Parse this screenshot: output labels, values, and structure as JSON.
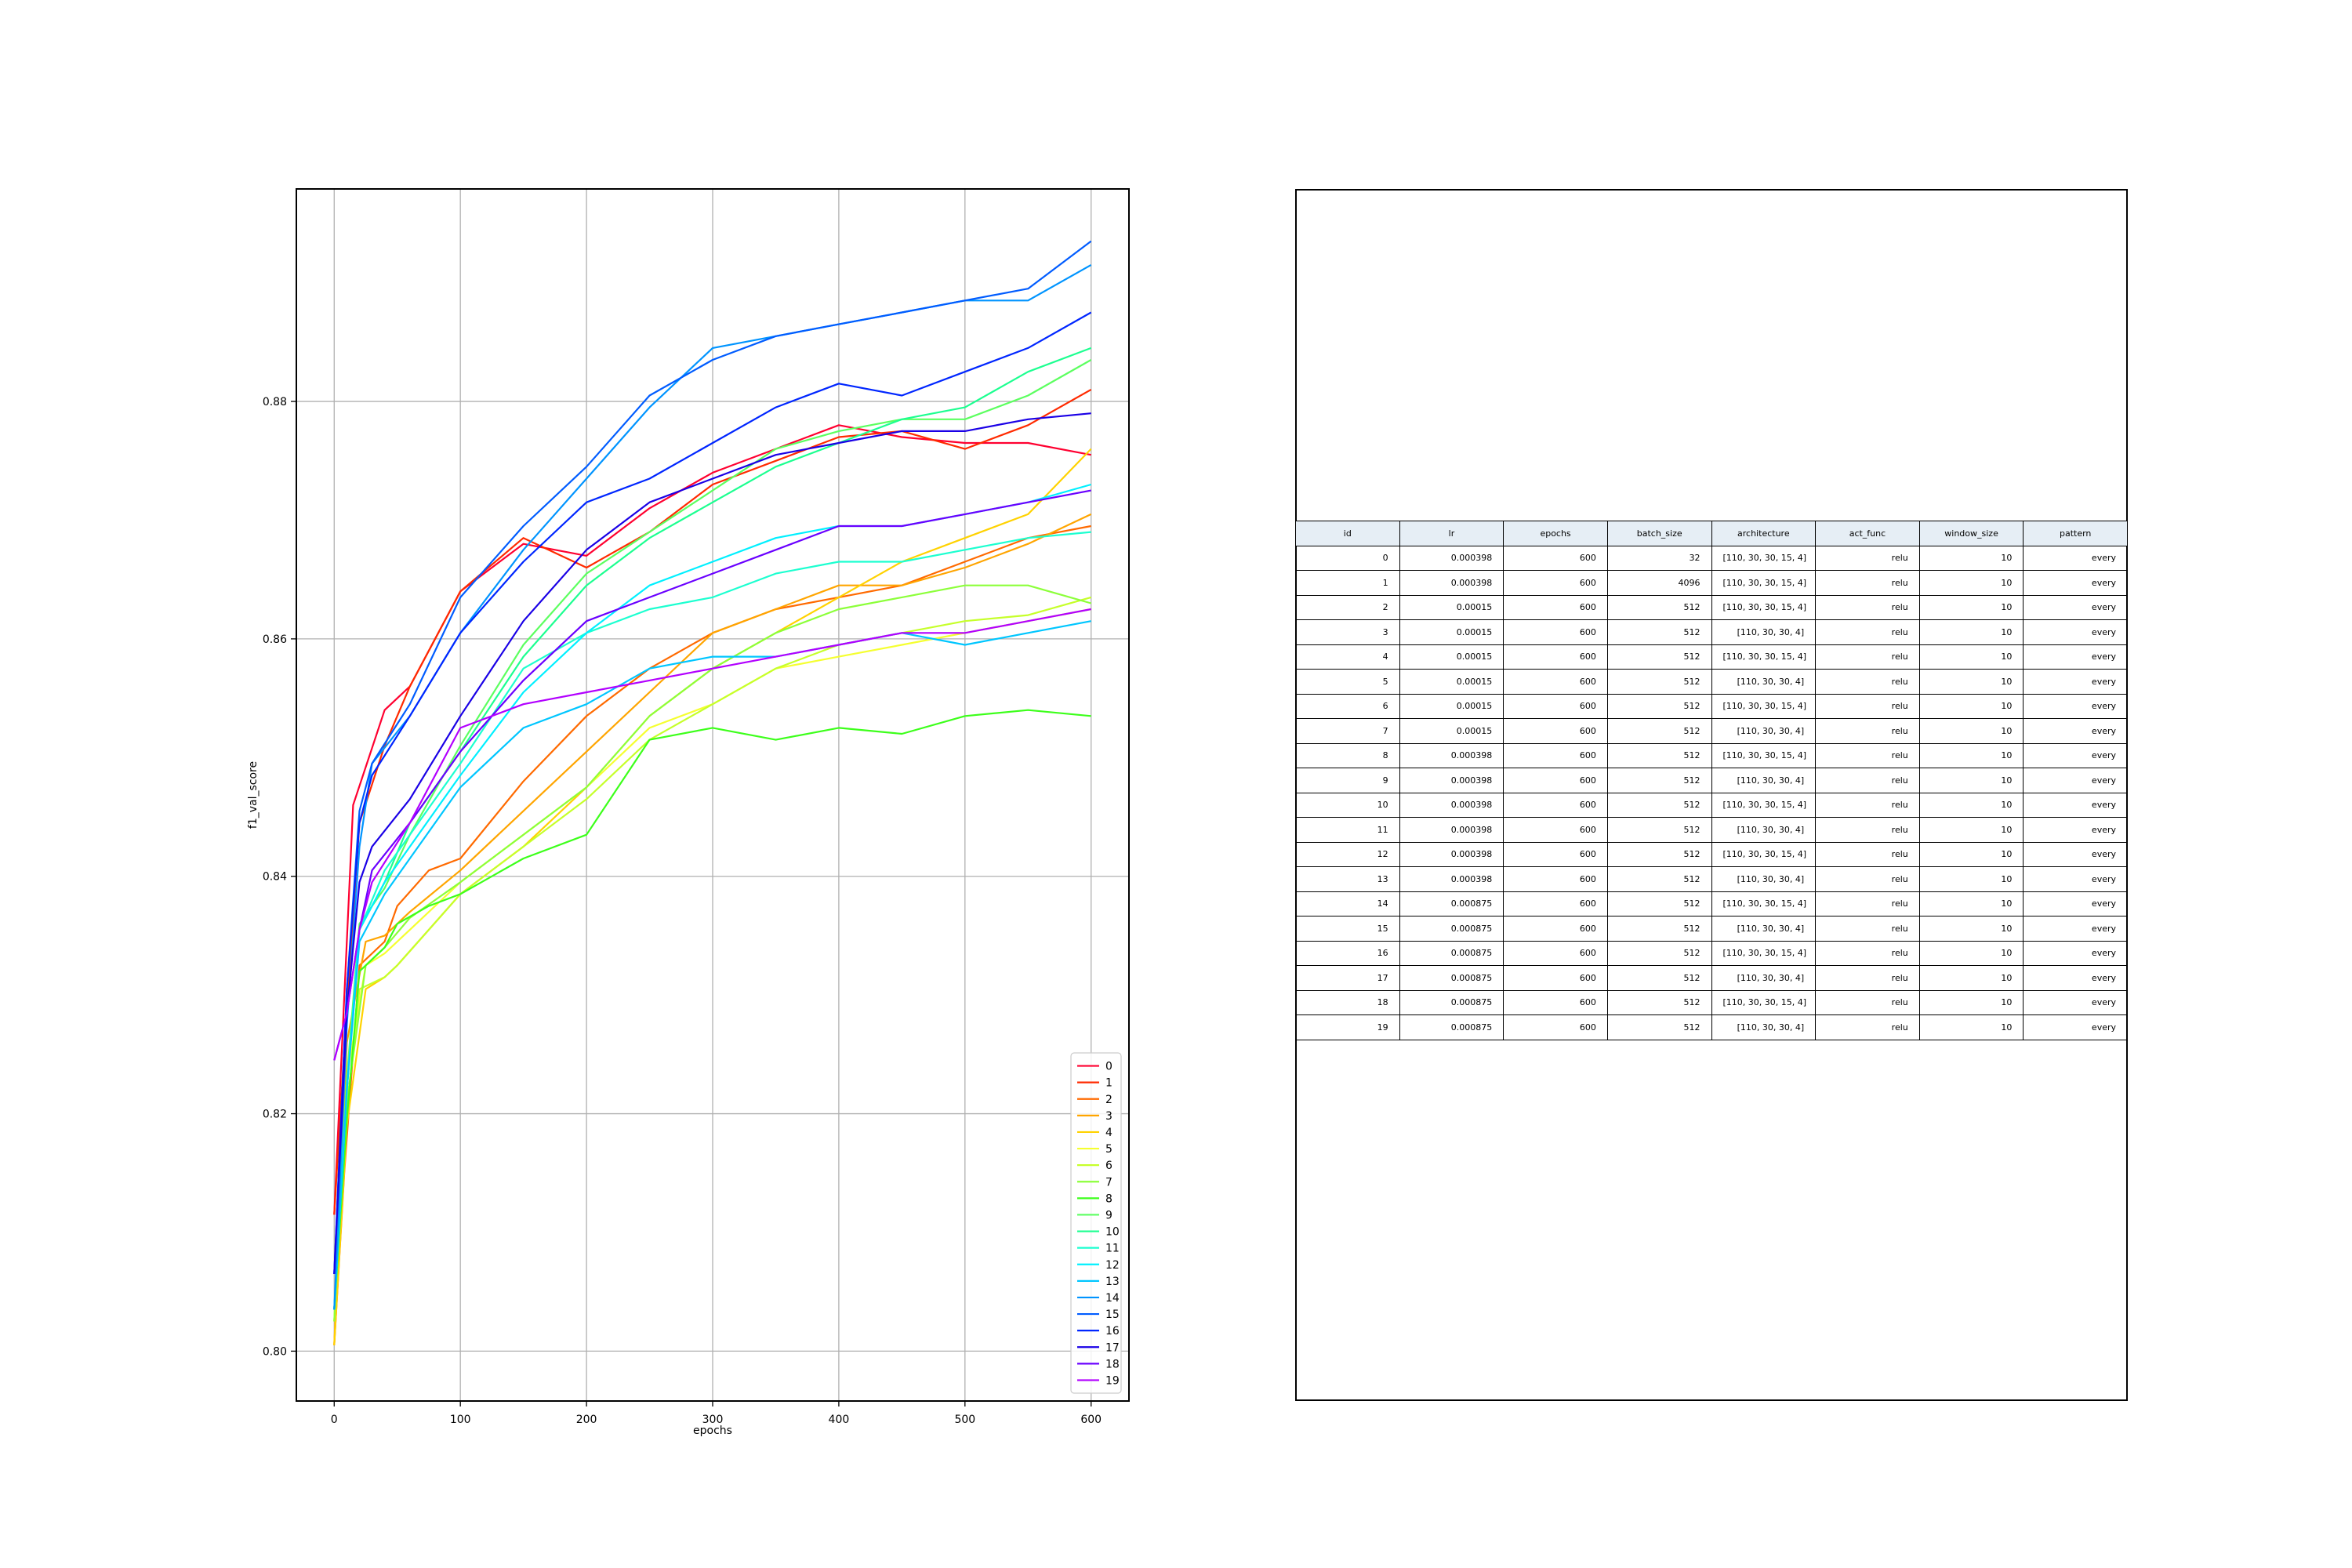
{
  "chart_data": {
    "type": "line",
    "xlabel": "epochs",
    "ylabel": "f1_val_score",
    "xlim": [
      -30,
      630
    ],
    "ylim": [
      0.7958,
      0.8979
    ],
    "xticks": [
      0,
      100,
      200,
      300,
      400,
      500,
      600
    ],
    "yticks": [
      0.8,
      0.82,
      0.84,
      0.86,
      0.88
    ],
    "ytick_labels": [
      "0.80",
      "0.82",
      "0.84",
      "0.86",
      "0.88"
    ],
    "grid": true,
    "legend_position": "lower right",
    "colors": [
      "#ff0030",
      "#ff2a00",
      "#ff6a00",
      "#ffa500",
      "#ffd200",
      "#f5ff30",
      "#c6ff2a",
      "#8cff3a",
      "#3cff1a",
      "#5cff60",
      "#1cff90",
      "#1cffd0",
      "#00f0ff",
      "#00c6ff",
      "#0094ff",
      "#005cff",
      "#0026ff",
      "#1a00e6",
      "#6a00ff",
      "#b200ff"
    ],
    "series": [
      {
        "name": "0",
        "x": [
          0,
          15,
          40,
          60,
          100,
          150,
          200,
          250,
          300,
          350,
          400,
          450,
          500,
          550,
          600
        ],
        "y": [
          0.8115,
          0.846,
          0.854,
          0.856,
          0.864,
          0.868,
          0.867,
          0.871,
          0.874,
          0.876,
          0.878,
          0.877,
          0.8765,
          0.8765,
          0.8755
        ]
      },
      {
        "name": "1",
        "x": [
          0,
          10,
          20,
          40,
          60,
          100,
          150,
          200,
          250,
          300,
          350,
          400,
          450,
          500,
          550,
          600
        ],
        "y": [
          0.8115,
          0.829,
          0.8445,
          0.851,
          0.856,
          0.864,
          0.8685,
          0.866,
          0.869,
          0.873,
          0.875,
          0.877,
          0.8775,
          0.876,
          0.878,
          0.881
        ]
      },
      {
        "name": "2",
        "x": [
          0,
          8,
          20,
          40,
          50,
          75,
          100,
          150,
          200,
          250,
          300,
          350,
          400,
          450,
          500,
          550,
          600
        ],
        "y": [
          0.8005,
          0.815,
          0.8325,
          0.8345,
          0.8375,
          0.8405,
          0.8415,
          0.848,
          0.8535,
          0.8575,
          0.8605,
          0.8625,
          0.8635,
          0.8645,
          0.8665,
          0.8685,
          0.8695
        ]
      },
      {
        "name": "3",
        "x": [
          0,
          10,
          25,
          40,
          60,
          100,
          150,
          200,
          250,
          300,
          350,
          400,
          450,
          500,
          550,
          600
        ],
        "y": [
          0.8005,
          0.826,
          0.8345,
          0.835,
          0.837,
          0.8405,
          0.8455,
          0.8505,
          0.8555,
          0.8605,
          0.8625,
          0.8645,
          0.8645,
          0.866,
          0.868,
          0.8705
        ]
      },
      {
        "name": "4",
        "x": [
          0,
          10,
          25,
          40,
          50,
          75,
          100,
          150,
          200,
          250,
          300,
          350,
          400,
          450,
          500,
          550,
          600
        ],
        "y": [
          0.8005,
          0.819,
          0.8305,
          0.8315,
          0.8325,
          0.8355,
          0.8385,
          0.8425,
          0.8475,
          0.8535,
          0.8575,
          0.8605,
          0.8635,
          0.8665,
          0.8685,
          0.8705,
          0.876
        ]
      },
      {
        "name": "5",
        "x": [
          0,
          10,
          25,
          40,
          60,
          100,
          150,
          200,
          250,
          300,
          350,
          400,
          450,
          500,
          550,
          600
        ],
        "y": [
          0.8025,
          0.823,
          0.8325,
          0.8335,
          0.8355,
          0.8395,
          0.8435,
          0.8475,
          0.8525,
          0.8545,
          0.8575,
          0.8585,
          0.8595,
          0.8605,
          0.8615,
          0.8625
        ]
      },
      {
        "name": "6",
        "x": [
          0,
          8,
          20,
          40,
          50,
          75,
          100,
          150,
          200,
          250,
          300,
          350,
          400,
          450,
          500,
          550,
          600
        ],
        "y": [
          0.8025,
          0.818,
          0.8305,
          0.8315,
          0.8325,
          0.8355,
          0.8385,
          0.8425,
          0.8465,
          0.8515,
          0.8545,
          0.8575,
          0.8595,
          0.8605,
          0.8615,
          0.862,
          0.8635
        ]
      },
      {
        "name": "7",
        "x": [
          0,
          10,
          25,
          40,
          60,
          100,
          150,
          200,
          250,
          300,
          350,
          400,
          450,
          500,
          550,
          600
        ],
        "y": [
          0.8025,
          0.821,
          0.8325,
          0.834,
          0.8365,
          0.8395,
          0.8435,
          0.8475,
          0.8535,
          0.8575,
          0.8605,
          0.8625,
          0.8635,
          0.8645,
          0.8645,
          0.863
        ]
      },
      {
        "name": "8",
        "x": [
          0,
          10,
          20,
          40,
          50,
          75,
          100,
          150,
          200,
          250,
          300,
          350,
          400,
          450,
          500,
          550,
          600
        ],
        "y": [
          0.8035,
          0.8195,
          0.832,
          0.834,
          0.836,
          0.8375,
          0.8385,
          0.8415,
          0.8435,
          0.8515,
          0.8525,
          0.8515,
          0.8525,
          0.852,
          0.8535,
          0.854,
          0.8535
        ]
      },
      {
        "name": "9",
        "x": [
          0,
          10,
          20,
          40,
          60,
          100,
          150,
          200,
          250,
          300,
          350,
          400,
          450,
          500,
          550,
          600
        ],
        "y": [
          0.8035,
          0.823,
          0.836,
          0.839,
          0.8435,
          0.851,
          0.8595,
          0.8655,
          0.869,
          0.8725,
          0.876,
          0.8775,
          0.8785,
          0.8785,
          0.8805,
          0.8835
        ]
      },
      {
        "name": "10",
        "x": [
          0,
          10,
          20,
          40,
          60,
          100,
          150,
          200,
          250,
          300,
          350,
          400,
          450,
          500,
          550,
          600
        ],
        "y": [
          0.8035,
          0.822,
          0.8355,
          0.8395,
          0.8445,
          0.8505,
          0.8585,
          0.8645,
          0.8685,
          0.8715,
          0.8745,
          0.8765,
          0.8785,
          0.8795,
          0.8825,
          0.8845
        ]
      },
      {
        "name": "11",
        "x": [
          0,
          10,
          20,
          40,
          60,
          100,
          150,
          200,
          250,
          300,
          350,
          400,
          450,
          500,
          550,
          600
        ],
        "y": [
          0.8035,
          0.822,
          0.8355,
          0.8405,
          0.8435,
          0.8495,
          0.8575,
          0.8605,
          0.8625,
          0.8635,
          0.8655,
          0.8665,
          0.8665,
          0.8675,
          0.8685,
          0.869
        ]
      },
      {
        "name": "12",
        "x": [
          0,
          10,
          20,
          40,
          60,
          100,
          150,
          200,
          250,
          300,
          350,
          400,
          450,
          500,
          550,
          600
        ],
        "y": [
          0.8035,
          0.822,
          0.8355,
          0.8395,
          0.8425,
          0.8485,
          0.8555,
          0.8605,
          0.8645,
          0.8665,
          0.8685,
          0.8695,
          0.8695,
          0.8705,
          0.8715,
          0.873
        ]
      },
      {
        "name": "13",
        "x": [
          0,
          10,
          20,
          40,
          60,
          100,
          150,
          200,
          250,
          300,
          350,
          400,
          450,
          500,
          550,
          600
        ],
        "y": [
          0.8035,
          0.822,
          0.8345,
          0.8385,
          0.8415,
          0.8475,
          0.8525,
          0.8545,
          0.8575,
          0.8585,
          0.8585,
          0.8595,
          0.8605,
          0.8595,
          0.8605,
          0.8615
        ]
      },
      {
        "name": "14",
        "x": [
          0,
          10,
          20,
          30,
          60,
          100,
          150,
          200,
          250,
          300,
          350,
          400,
          450,
          500,
          550,
          600
        ],
        "y": [
          0.8035,
          0.8275,
          0.8425,
          0.8495,
          0.8535,
          0.8605,
          0.8675,
          0.8735,
          0.8795,
          0.8845,
          0.8855,
          0.8865,
          0.8875,
          0.8885,
          0.8885,
          0.8915
        ]
      },
      {
        "name": "15",
        "x": [
          0,
          10,
          20,
          30,
          60,
          100,
          150,
          200,
          250,
          300,
          350,
          400,
          450,
          500,
          550,
          600
        ],
        "y": [
          0.8065,
          0.8305,
          0.8455,
          0.8495,
          0.8545,
          0.8635,
          0.8695,
          0.8745,
          0.8805,
          0.8835,
          0.8855,
          0.8865,
          0.8875,
          0.8885,
          0.8895,
          0.8935
        ]
      },
      {
        "name": "16",
        "x": [
          0,
          10,
          20,
          30,
          60,
          100,
          150,
          200,
          250,
          300,
          350,
          400,
          450,
          500,
          550,
          600
        ],
        "y": [
          0.8065,
          0.8305,
          0.8445,
          0.8485,
          0.8535,
          0.8605,
          0.8665,
          0.8715,
          0.8735,
          0.8765,
          0.8795,
          0.8815,
          0.8805,
          0.8825,
          0.8845,
          0.8875
        ]
      },
      {
        "name": "17",
        "x": [
          0,
          10,
          20,
          30,
          60,
          100,
          150,
          200,
          250,
          300,
          350,
          400,
          450,
          500,
          550,
          600
        ],
        "y": [
          0.8065,
          0.8285,
          0.8395,
          0.8425,
          0.8465,
          0.8535,
          0.8615,
          0.8675,
          0.8715,
          0.8735,
          0.8755,
          0.8765,
          0.8775,
          0.8775,
          0.8785,
          0.879
        ]
      },
      {
        "name": "18",
        "x": [
          0,
          10,
          20,
          30,
          60,
          100,
          150,
          200,
          250,
          300,
          350,
          400,
          450,
          500,
          550,
          600
        ],
        "y": [
          0.8245,
          0.8285,
          0.8355,
          0.8405,
          0.8445,
          0.8505,
          0.8565,
          0.8615,
          0.8635,
          0.8655,
          0.8675,
          0.8695,
          0.8695,
          0.8705,
          0.8715,
          0.8725
        ]
      },
      {
        "name": "19",
        "x": [
          0,
          10,
          20,
          30,
          60,
          100,
          150,
          200,
          250,
          300,
          350,
          400,
          450,
          500,
          550,
          600
        ],
        "y": [
          0.8245,
          0.8285,
          0.8355,
          0.8395,
          0.8445,
          0.8525,
          0.8545,
          0.8555,
          0.8565,
          0.8575,
          0.8585,
          0.8595,
          0.8605,
          0.8605,
          0.8615,
          0.8625
        ]
      }
    ]
  },
  "table": {
    "columns": [
      "id",
      "lr",
      "epochs",
      "batch_size",
      "architecture",
      "act_func",
      "window_size",
      "pattern"
    ],
    "rows": [
      [
        "0",
        "0.000398",
        "600",
        "32",
        "[110, 30, 30, 15, 4]",
        "relu",
        "10",
        "every"
      ],
      [
        "1",
        "0.000398",
        "600",
        "4096",
        "[110, 30, 30, 15, 4]",
        "relu",
        "10",
        "every"
      ],
      [
        "2",
        "0.00015",
        "600",
        "512",
        "[110, 30, 30, 15, 4]",
        "relu",
        "10",
        "every"
      ],
      [
        "3",
        "0.00015",
        "600",
        "512",
        "[110, 30, 30, 4]",
        "relu",
        "10",
        "every"
      ],
      [
        "4",
        "0.00015",
        "600",
        "512",
        "[110, 30, 30, 15, 4]",
        "relu",
        "10",
        "every"
      ],
      [
        "5",
        "0.00015",
        "600",
        "512",
        "[110, 30, 30, 4]",
        "relu",
        "10",
        "every"
      ],
      [
        "6",
        "0.00015",
        "600",
        "512",
        "[110, 30, 30, 15, 4]",
        "relu",
        "10",
        "every"
      ],
      [
        "7",
        "0.00015",
        "600",
        "512",
        "[110, 30, 30, 4]",
        "relu",
        "10",
        "every"
      ],
      [
        "8",
        "0.000398",
        "600",
        "512",
        "[110, 30, 30, 15, 4]",
        "relu",
        "10",
        "every"
      ],
      [
        "9",
        "0.000398",
        "600",
        "512",
        "[110, 30, 30, 4]",
        "relu",
        "10",
        "every"
      ],
      [
        "10",
        "0.000398",
        "600",
        "512",
        "[110, 30, 30, 15, 4]",
        "relu",
        "10",
        "every"
      ],
      [
        "11",
        "0.000398",
        "600",
        "512",
        "[110, 30, 30, 4]",
        "relu",
        "10",
        "every"
      ],
      [
        "12",
        "0.000398",
        "600",
        "512",
        "[110, 30, 30, 15, 4]",
        "relu",
        "10",
        "every"
      ],
      [
        "13",
        "0.000398",
        "600",
        "512",
        "[110, 30, 30, 4]",
        "relu",
        "10",
        "every"
      ],
      [
        "14",
        "0.000875",
        "600",
        "512",
        "[110, 30, 30, 15, 4]",
        "relu",
        "10",
        "every"
      ],
      [
        "15",
        "0.000875",
        "600",
        "512",
        "[110, 30, 30, 4]",
        "relu",
        "10",
        "every"
      ],
      [
        "16",
        "0.000875",
        "600",
        "512",
        "[110, 30, 30, 15, 4]",
        "relu",
        "10",
        "every"
      ],
      [
        "17",
        "0.000875",
        "600",
        "512",
        "[110, 30, 30, 4]",
        "relu",
        "10",
        "every"
      ],
      [
        "18",
        "0.000875",
        "600",
        "512",
        "[110, 30, 30, 15, 4]",
        "relu",
        "10",
        "every"
      ],
      [
        "19",
        "0.000875",
        "600",
        "512",
        "[110, 30, 30, 4]",
        "relu",
        "10",
        "every"
      ]
    ]
  }
}
